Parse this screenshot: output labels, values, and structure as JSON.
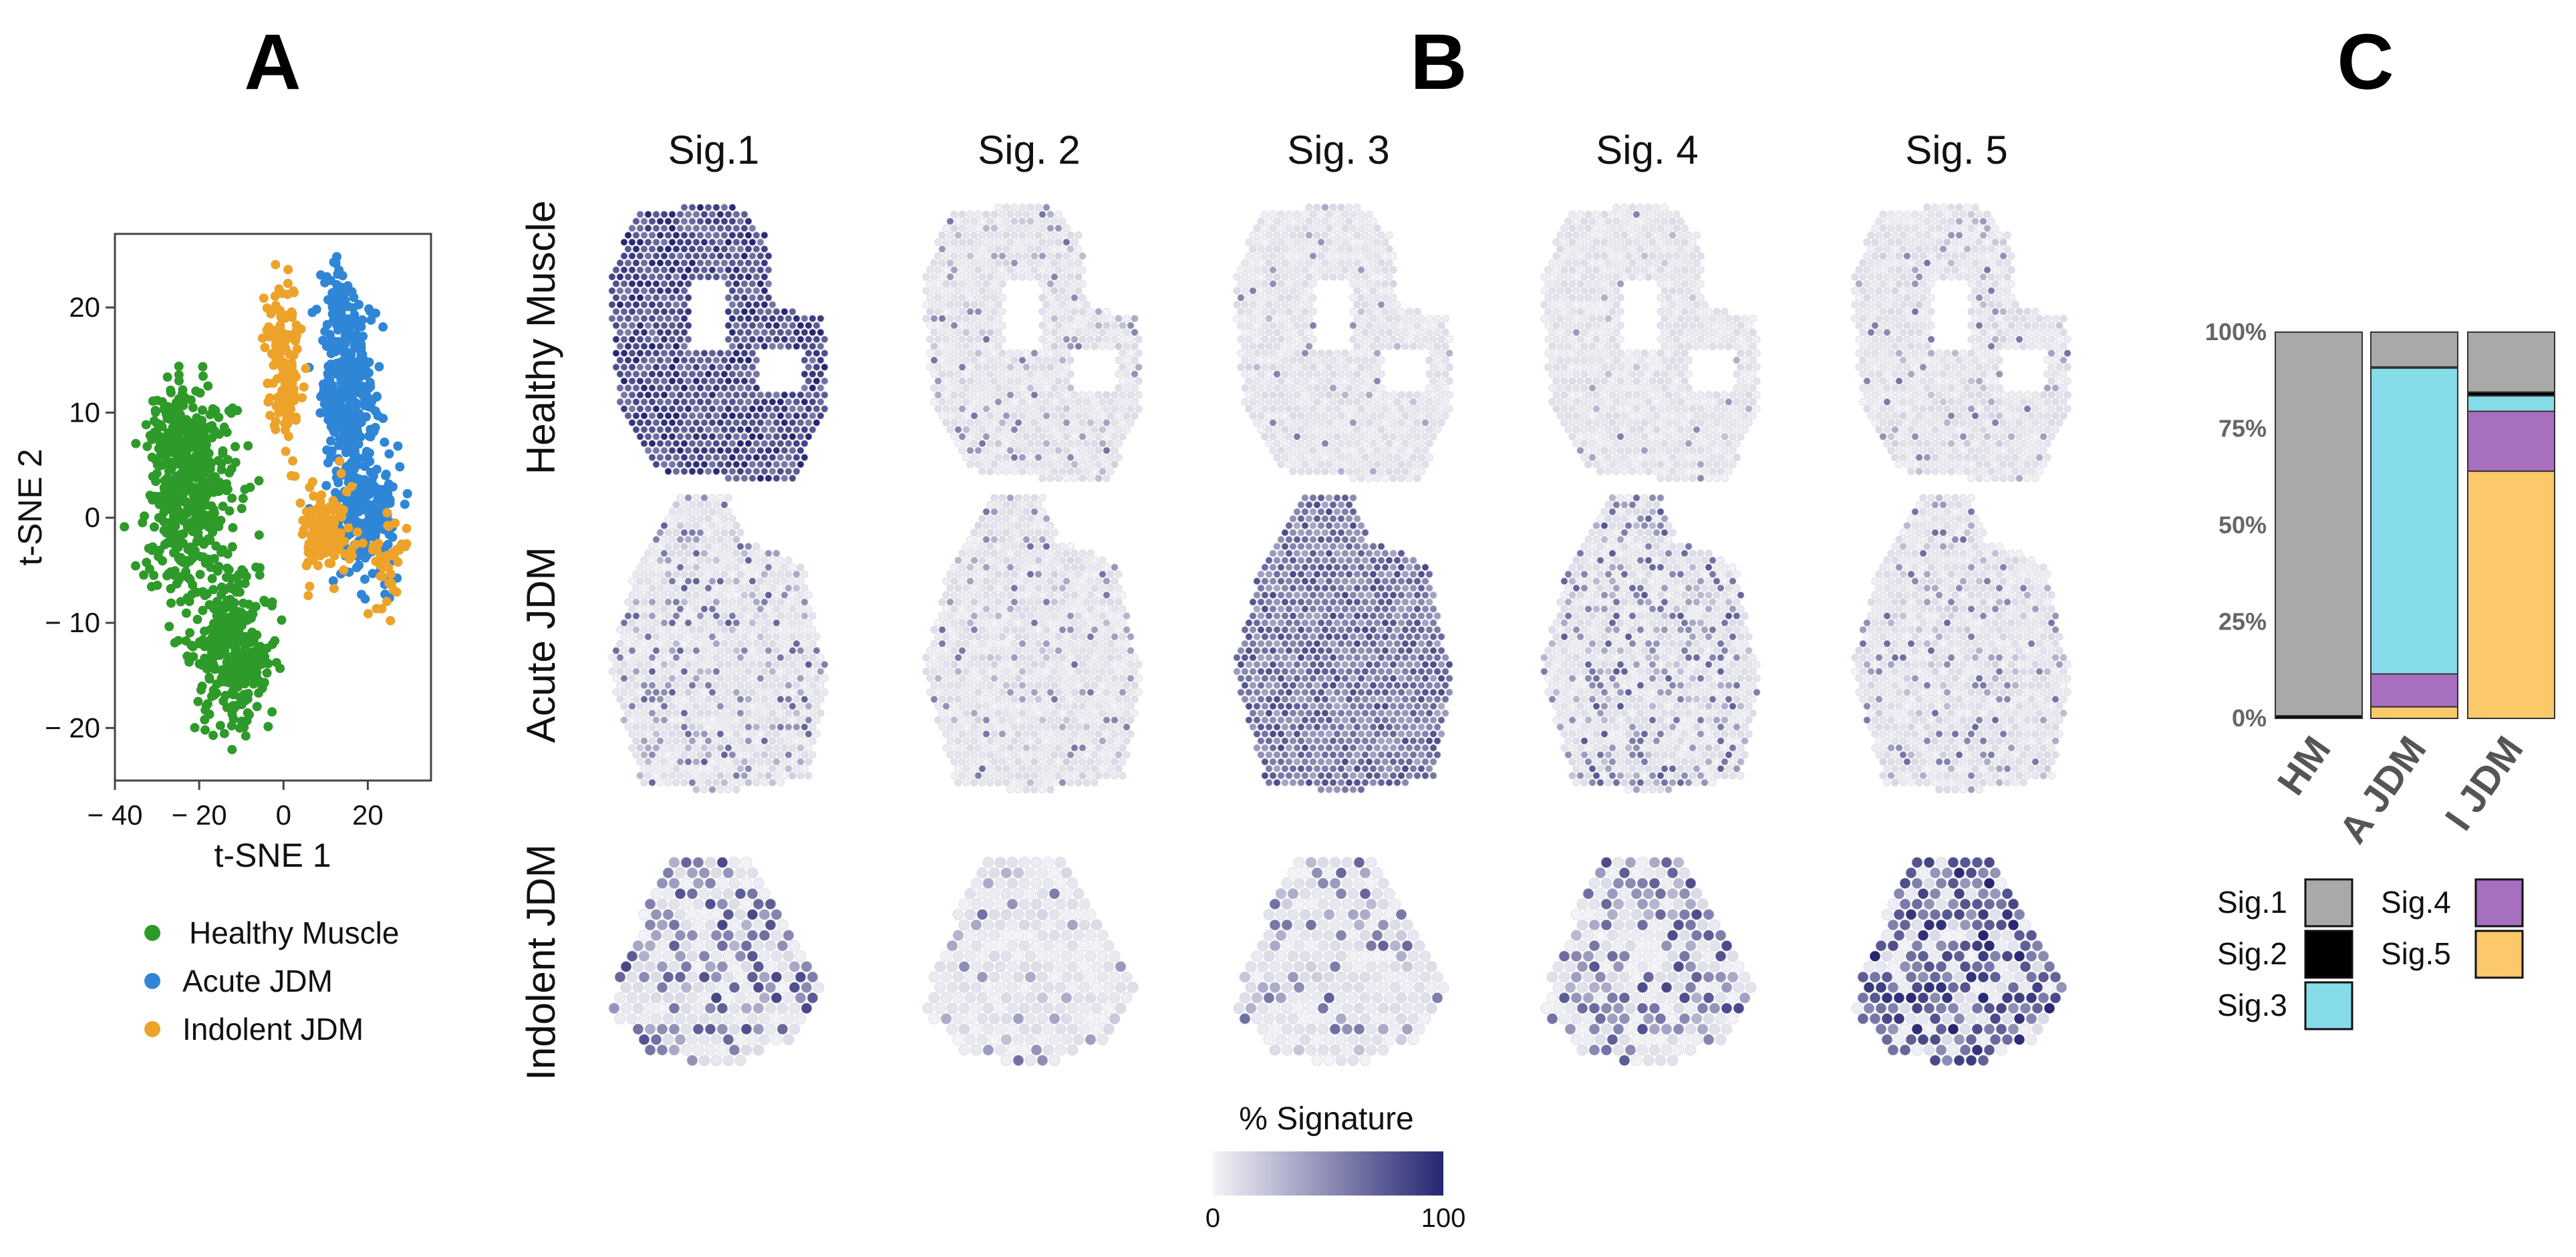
{
  "panels": {
    "a": "A",
    "b": "B",
    "c": "C"
  },
  "colors": {
    "healthy": "#2e9a2a",
    "acute": "#2f86d6",
    "indolent": "#eda32a",
    "sig1": "#a9a9a9",
    "sig2": "#000000",
    "sig3": "#86dbe8",
    "sig4": "#a86fbf",
    "sig5": "#fbc86a",
    "heat_low": "#f4f4f8",
    "heat_high": "#262673"
  },
  "chart_data": [
    {
      "type": "scatter",
      "panel": "A",
      "xlabel": "t-SNE 1",
      "ylabel": "t-SNE 2",
      "xlim": [
        -40,
        35
      ],
      "ylim": [
        -25,
        27
      ],
      "xticks": [
        -40,
        -20,
        0,
        20
      ],
      "xtick_labels": [
        "− 40",
        "− 20",
        "0",
        "20"
      ],
      "yticks": [
        -20,
        -10,
        0,
        10,
        20
      ],
      "ytick_labels": [
        "− 20",
        "− 10",
        "0",
        "10",
        "20"
      ],
      "legend_position": "bottom",
      "series": [
        {
          "name": "Healthy Muscle",
          "color": "#2e9a2a",
          "clusters": [
            {
              "cx": -22,
              "cy": 2,
              "sx": 7.5,
              "sy": 7,
              "n": 420
            },
            {
              "cx": -12,
              "cy": -13,
              "sx": 6.5,
              "sy": 5,
              "n": 330
            },
            {
              "cx": -25,
              "cy": 8,
              "sx": 5,
              "sy": 3,
              "n": 90
            }
          ]
        },
        {
          "name": "Acute JDM",
          "color": "#2f86d6",
          "clusters": [
            {
              "cx": 15,
              "cy": 12,
              "sx": 4.5,
              "sy": 6.5,
              "n": 380
            },
            {
              "cx": 20,
              "cy": 0,
              "sx": 5,
              "sy": 4,
              "n": 200
            },
            {
              "cx": 13,
              "cy": 21,
              "sx": 2.5,
              "sy": 2.5,
              "n": 40
            }
          ]
        },
        {
          "name": "Indolent JDM",
          "color": "#eda32a",
          "clusters": [
            {
              "cx": 0,
              "cy": 15,
              "sx": 3,
              "sy": 5,
              "n": 170
            },
            {
              "cx": 10,
              "cy": -1,
              "sx": 5,
              "sy": 3,
              "n": 130
            },
            {
              "cx": 25,
              "cy": -4,
              "sx": 3,
              "sy": 3,
              "n": 40
            }
          ]
        }
      ]
    },
    {
      "type": "heatmap",
      "panel": "B",
      "description_scale": "% Signature",
      "columns": [
        "Sig.1",
        "Sig. 2",
        "Sig. 3",
        "Sig. 4",
        "Sig. 5"
      ],
      "rows": [
        "Healthy Muscle",
        "Acute JDM",
        "Indolent JDM"
      ],
      "mean_intensity": [
        [
          0.8,
          0.1,
          0.04,
          0.03,
          0.08
        ],
        [
          0.18,
          0.1,
          0.6,
          0.22,
          0.12
        ],
        [
          0.3,
          0.1,
          0.16,
          0.28,
          0.45
        ]
      ],
      "colorbar": {
        "title": "% Signature",
        "min": 0,
        "max": 100,
        "min_label": "0",
        "max_label": "100"
      }
    },
    {
      "type": "bar",
      "panel": "C",
      "stacked": true,
      "categories": [
        "HM",
        "A JDM",
        "I JDM"
      ],
      "yticks": [
        "0%",
        "25%",
        "50%",
        "75%",
        "100%"
      ],
      "ylim": [
        0,
        100
      ],
      "series": [
        {
          "name": "Sig.1",
          "color": "#a9a9a9",
          "values": [
            99.3,
            9.0,
            15.5
          ]
        },
        {
          "name": "Sig.2",
          "color": "#000000",
          "values": [
            0.7,
            0.3,
            1.0
          ]
        },
        {
          "name": "Sig.3",
          "color": "#86dbe8",
          "values": [
            0,
            79.2,
            4.0
          ]
        },
        {
          "name": "Sig.4",
          "color": "#a86fbf",
          "values": [
            0,
            8.5,
            15.5
          ]
        },
        {
          "name": "Sig.5",
          "color": "#fbc86a",
          "values": [
            0,
            3.0,
            64.0
          ]
        }
      ],
      "legend": [
        "Sig.1",
        "Sig.2",
        "Sig.3",
        "Sig.4",
        "Sig.5"
      ],
      "legend_position": "bottom"
    }
  ]
}
